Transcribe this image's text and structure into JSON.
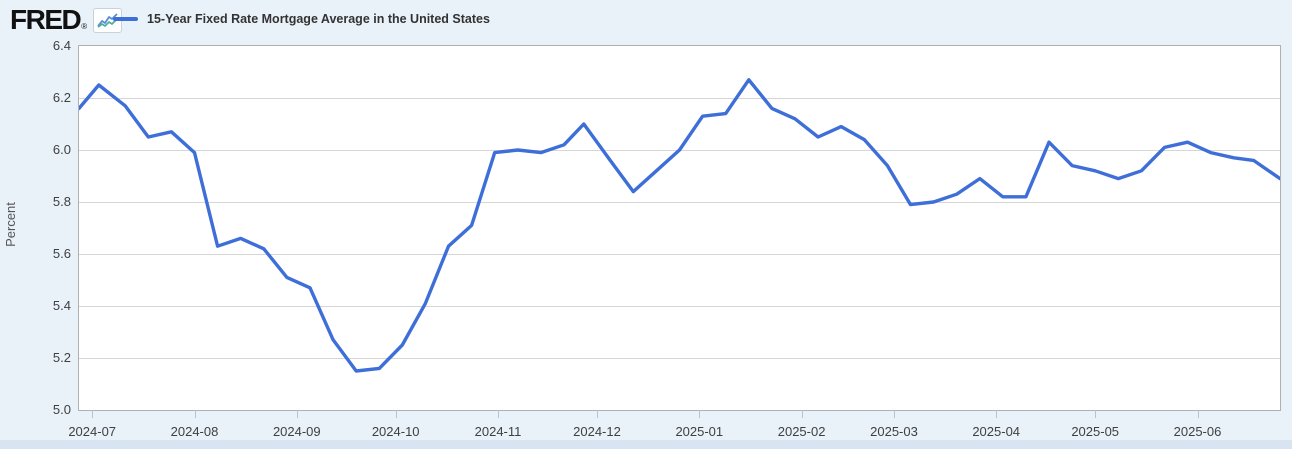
{
  "header": {
    "logo_text": "FRED",
    "logo_registered_mark": "®"
  },
  "colors": {
    "background": "#E9F1F9",
    "plot_background": "#FFFFFF",
    "plot_border": "#B0B0B0",
    "gridline": "#D6D6D6",
    "line": "#3E6ED8",
    "tick_text": "#404040",
    "legend_text": "#333333",
    "bottom_strip": "#D8E4F1",
    "tick_mark": "#B9C3CF",
    "logo_icon_blue": "#5B8BD4",
    "logo_icon_teal": "#4FAE9C"
  },
  "chart_data": {
    "type": "line",
    "title": "15-Year Fixed Rate Mortgage Average in the United States",
    "xlabel": "",
    "ylabel": "Percent",
    "ylim": [
      5.0,
      6.4
    ],
    "y_ticks": [
      "6.4",
      "6.2",
      "6.0",
      "5.8",
      "5.6",
      "5.4",
      "5.2",
      "5.0"
    ],
    "x_range": [
      "2024-06-27",
      "2025-06-26"
    ],
    "x_ticks": [
      {
        "label": "2024-07",
        "date": "2024-07-01"
      },
      {
        "label": "2024-08",
        "date": "2024-08-01"
      },
      {
        "label": "2024-09",
        "date": "2024-09-01"
      },
      {
        "label": "2024-10",
        "date": "2024-10-01"
      },
      {
        "label": "2024-11",
        "date": "2024-11-01"
      },
      {
        "label": "2024-12",
        "date": "2024-12-01"
      },
      {
        "label": "2025-01",
        "date": "2025-01-01"
      },
      {
        "label": "2025-02",
        "date": "2025-02-01"
      },
      {
        "label": "2025-03",
        "date": "2025-03-01"
      },
      {
        "label": "2025-04",
        "date": "2025-04-01"
      },
      {
        "label": "2025-05",
        "date": "2025-05-01"
      },
      {
        "label": "2025-06",
        "date": "2025-06-01"
      }
    ],
    "grid": true,
    "legend_position": "top-left",
    "series": [
      {
        "name": "15-Year Fixed Rate Mortgage Average in the United States",
        "color": "#3E6ED8",
        "points": [
          {
            "date": "2024-06-27",
            "value": 6.16
          },
          {
            "date": "2024-07-03",
            "value": 6.25
          },
          {
            "date": "2024-07-11",
            "value": 6.17
          },
          {
            "date": "2024-07-18",
            "value": 6.05
          },
          {
            "date": "2024-07-25",
            "value": 6.07
          },
          {
            "date": "2024-08-01",
            "value": 5.99
          },
          {
            "date": "2024-08-08",
            "value": 5.63
          },
          {
            "date": "2024-08-15",
            "value": 5.66
          },
          {
            "date": "2024-08-22",
            "value": 5.62
          },
          {
            "date": "2024-08-29",
            "value": 5.51
          },
          {
            "date": "2024-09-05",
            "value": 5.47
          },
          {
            "date": "2024-09-12",
            "value": 5.27
          },
          {
            "date": "2024-09-19",
            "value": 5.15
          },
          {
            "date": "2024-09-26",
            "value": 5.16
          },
          {
            "date": "2024-10-03",
            "value": 5.25
          },
          {
            "date": "2024-10-10",
            "value": 5.41
          },
          {
            "date": "2024-10-17",
            "value": 5.63
          },
          {
            "date": "2024-10-24",
            "value": 5.71
          },
          {
            "date": "2024-10-31",
            "value": 5.99
          },
          {
            "date": "2024-11-07",
            "value": 6.0
          },
          {
            "date": "2024-11-14",
            "value": 5.99
          },
          {
            "date": "2024-11-21",
            "value": 6.02
          },
          {
            "date": "2024-11-27",
            "value": 6.1
          },
          {
            "date": "2024-12-05",
            "value": 5.96
          },
          {
            "date": "2024-12-12",
            "value": 5.84
          },
          {
            "date": "2024-12-19",
            "value": 5.92
          },
          {
            "date": "2024-12-26",
            "value": 6.0
          },
          {
            "date": "2025-01-02",
            "value": 6.13
          },
          {
            "date": "2025-01-09",
            "value": 6.14
          },
          {
            "date": "2025-01-16",
            "value": 6.27
          },
          {
            "date": "2025-01-23",
            "value": 6.16
          },
          {
            "date": "2025-01-30",
            "value": 6.12
          },
          {
            "date": "2025-02-06",
            "value": 6.05
          },
          {
            "date": "2025-02-13",
            "value": 6.09
          },
          {
            "date": "2025-02-20",
            "value": 6.04
          },
          {
            "date": "2025-02-27",
            "value": 5.94
          },
          {
            "date": "2025-03-06",
            "value": 5.79
          },
          {
            "date": "2025-03-13",
            "value": 5.8
          },
          {
            "date": "2025-03-20",
            "value": 5.83
          },
          {
            "date": "2025-03-27",
            "value": 5.89
          },
          {
            "date": "2025-04-03",
            "value": 5.82
          },
          {
            "date": "2025-04-10",
            "value": 5.82
          },
          {
            "date": "2025-04-17",
            "value": 6.03
          },
          {
            "date": "2025-04-24",
            "value": 5.94
          },
          {
            "date": "2025-05-01",
            "value": 5.92
          },
          {
            "date": "2025-05-08",
            "value": 5.89
          },
          {
            "date": "2025-05-15",
            "value": 5.92
          },
          {
            "date": "2025-05-22",
            "value": 6.01
          },
          {
            "date": "2025-05-29",
            "value": 6.03
          },
          {
            "date": "2025-06-05",
            "value": 5.99
          },
          {
            "date": "2025-06-12",
            "value": 5.97
          },
          {
            "date": "2025-06-18",
            "value": 5.96
          },
          {
            "date": "2025-06-26",
            "value": 5.89
          }
        ]
      }
    ]
  }
}
